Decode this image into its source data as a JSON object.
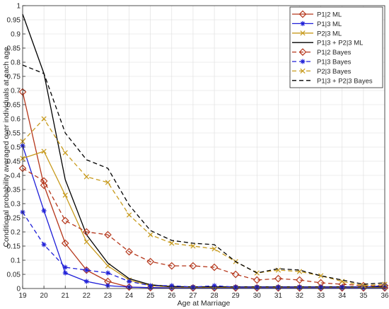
{
  "chart_data": {
    "type": "line",
    "title": "",
    "xlabel": "Age at Marriage",
    "ylabel": "Conditional probability averaged over individuals at each age",
    "x": [
      19,
      20,
      21,
      22,
      23,
      24,
      25,
      26,
      27,
      28,
      29,
      30,
      31,
      32,
      33,
      34,
      35,
      36
    ],
    "xlim": [
      19,
      36
    ],
    "ylim": [
      0,
      1
    ],
    "xticks": [
      "19",
      "20",
      "21",
      "22",
      "23",
      "24",
      "25",
      "26",
      "27",
      "28",
      "29",
      "30",
      "31",
      "32",
      "33",
      "34",
      "35",
      "36"
    ],
    "yticks": [
      "0",
      "0.05",
      "0.1",
      "0.15",
      "0.2",
      "0.25",
      "0.3",
      "0.35",
      "0.4",
      "0.45",
      "0.5",
      "0.55",
      "0.6",
      "0.65",
      "0.7",
      "0.75",
      "0.8",
      "0.85",
      "0.9",
      "0.95",
      "1"
    ],
    "grid": true,
    "legend_position": "top-right",
    "series": [
      {
        "name": "P1|2 ML",
        "color": "#b5361a",
        "dash": "solid",
        "marker": "diamond",
        "values": [
          0.695,
          0.365,
          0.16,
          0.065,
          0.025,
          0.005,
          0.003,
          0.002,
          0.002,
          0.002,
          0.002,
          0.002,
          0.002,
          0.002,
          0.002,
          0.002,
          0.002,
          0.002
        ]
      },
      {
        "name": "P1|3 ML",
        "color": "#1f1fd8",
        "dash": "solid",
        "marker": "asterisk",
        "values": [
          0.505,
          0.275,
          0.055,
          0.025,
          0.01,
          0.005,
          0.003,
          0.002,
          0.002,
          0.002,
          0.002,
          0.002,
          0.002,
          0.002,
          0.002,
          0.002,
          0.002,
          0.002
        ]
      },
      {
        "name": "P2|3 ML",
        "color": "#c79a1c",
        "dash": "solid",
        "marker": "x",
        "values": [
          0.46,
          0.485,
          0.33,
          0.165,
          0.08,
          0.03,
          0.01,
          0.005,
          0.004,
          0.004,
          0.004,
          0.004,
          0.004,
          0.004,
          0.004,
          0.004,
          0.004,
          0.004
        ]
      },
      {
        "name": "P1|3 + P2|3 ML",
        "color": "#000000",
        "dash": "solid",
        "marker": "none",
        "values": [
          0.97,
          0.76,
          0.385,
          0.19,
          0.09,
          0.035,
          0.013,
          0.007,
          0.006,
          0.006,
          0.006,
          0.006,
          0.006,
          0.006,
          0.006,
          0.006,
          0.006,
          0.006
        ]
      },
      {
        "name": "P1|2 Bayes",
        "color": "#b5361a",
        "dash": "dashed",
        "marker": "diamond",
        "values": [
          0.425,
          0.38,
          0.24,
          0.2,
          0.19,
          0.13,
          0.095,
          0.08,
          0.08,
          0.075,
          0.05,
          0.03,
          0.035,
          0.03,
          0.02,
          0.015,
          0.01,
          0.01
        ]
      },
      {
        "name": "P1|3 Bayes",
        "color": "#1f1fd8",
        "dash": "dashed",
        "marker": "asterisk",
        "values": [
          0.27,
          0.155,
          0.075,
          0.065,
          0.055,
          0.025,
          0.01,
          0.01,
          0.005,
          0.01,
          0.005,
          0.005,
          0.005,
          0.005,
          0.005,
          0.005,
          0.005,
          0.01
        ]
      },
      {
        "name": "P2|3 Bayes",
        "color": "#c79a1c",
        "dash": "dashed",
        "marker": "x",
        "values": [
          0.52,
          0.6,
          0.48,
          0.395,
          0.375,
          0.26,
          0.19,
          0.16,
          0.15,
          0.14,
          0.095,
          0.055,
          0.065,
          0.06,
          0.045,
          0.025,
          0.01,
          0.015
        ]
      },
      {
        "name": "P1|3 + P2|3 Bayes",
        "color": "#000000",
        "dash": "dashed",
        "marker": "none",
        "values": [
          0.79,
          0.76,
          0.55,
          0.455,
          0.425,
          0.295,
          0.205,
          0.17,
          0.16,
          0.155,
          0.095,
          0.055,
          0.07,
          0.065,
          0.045,
          0.03,
          0.015,
          0.02
        ]
      }
    ]
  }
}
